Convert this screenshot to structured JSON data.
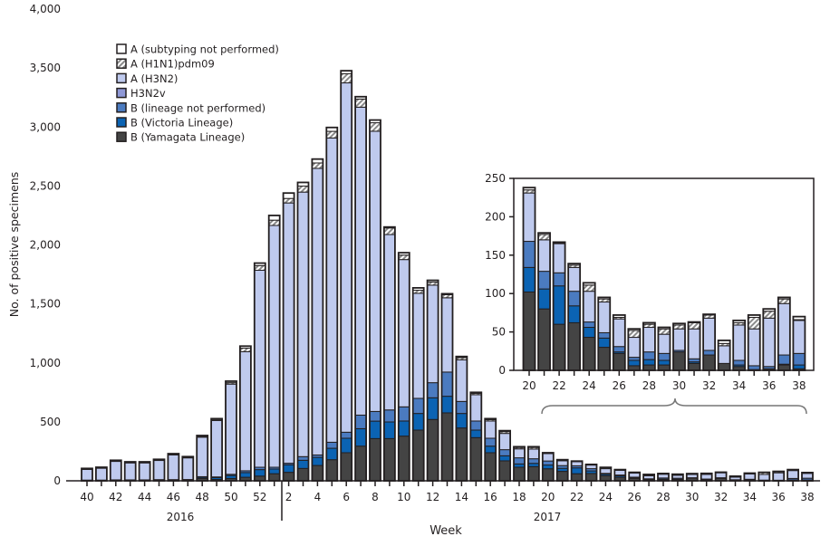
{
  "chart_data": {
    "type": "bar",
    "stacked": true,
    "ylabel": "No. of positive specimens",
    "xlabel": "Week",
    "ylim": [
      0,
      4000
    ],
    "y_ticks": [
      "0",
      "500",
      "1,000",
      "1,500",
      "2,000",
      "2,500",
      "3,000",
      "3,500",
      "4,000"
    ],
    "year_labels": [
      "2016",
      "2017"
    ],
    "weeks": [
      40,
      41,
      42,
      43,
      44,
      45,
      46,
      47,
      48,
      49,
      50,
      51,
      52,
      1,
      2,
      3,
      4,
      5,
      6,
      7,
      8,
      9,
      10,
      11,
      12,
      13,
      14,
      15,
      16,
      17,
      18,
      19,
      20,
      21,
      22,
      23,
      24,
      25,
      26,
      27,
      28,
      29,
      30,
      31,
      32,
      33,
      34,
      35,
      36,
      37,
      38
    ],
    "x_tick_labels": [
      "40",
      "42",
      "44",
      "46",
      "48",
      "50",
      "52",
      "2",
      "4",
      "6",
      "8",
      "10",
      "12",
      "14",
      "16",
      "18",
      "20",
      "22",
      "24",
      "26",
      "28",
      "30",
      "32",
      "34",
      "36",
      "38"
    ],
    "series": [
      {
        "name": "B (Yamagata Lineage)",
        "color": "#444444",
        "values": [
          3,
          3,
          4,
          4,
          4,
          5,
          5,
          6,
          20,
          12,
          20,
          30,
          40,
          60,
          72,
          105,
          130,
          179,
          238,
          294,
          358,
          358,
          379,
          430,
          520,
          576,
          448,
          366,
          238,
          169,
          115,
          120,
          102,
          80,
          60,
          62,
          43,
          30,
          22,
          6,
          7,
          7,
          24,
          9,
          20,
          9,
          5,
          1,
          2,
          7,
          2
        ]
      },
      {
        "name": "B (Victoria Lineage)",
        "color": "#0b63b3",
        "values": [
          2,
          2,
          2,
          2,
          2,
          3,
          3,
          3,
          10,
          15,
          25,
          40,
          55,
          40,
          64,
          69,
          69,
          97,
          123,
          148,
          148,
          141,
          128,
          141,
          184,
          141,
          123,
          64,
          56,
          43,
          28,
          28,
          32,
          26,
          50,
          22,
          13,
          12,
          2,
          7,
          7,
          6,
          0,
          2,
          0,
          0,
          2,
          0,
          0,
          1,
          5
        ]
      },
      {
        "name": "B (lineage not performed)",
        "color": "#4b7bc0",
        "values": [
          1,
          1,
          2,
          2,
          2,
          2,
          2,
          2,
          5,
          6,
          10,
          15,
          20,
          15,
          13,
          31,
          20,
          51,
          51,
          115,
          82,
          102,
          120,
          128,
          128,
          205,
          102,
          77,
          67,
          52,
          52,
          39,
          34,
          23,
          17,
          19,
          7,
          7,
          7,
          4,
          10,
          9,
          2,
          4,
          6,
          0,
          6,
          5,
          3,
          12,
          15
        ]
      },
      {
        "name": "H3N2v",
        "color": "#8f98d6",
        "values": [
          0,
          0,
          0,
          0,
          0,
          0,
          0,
          0,
          0,
          0,
          0,
          0,
          0,
          0,
          0,
          0,
          0,
          0,
          0,
          0,
          0,
          0,
          0,
          0,
          0,
          0,
          0,
          0,
          0,
          0,
          0,
          0,
          0,
          0,
          0,
          0,
          0,
          0,
          0,
          0,
          0,
          0,
          0,
          0,
          0,
          0,
          0,
          0,
          0,
          0,
          0
        ]
      },
      {
        "name": "A (H3N2)",
        "color": "#bfcaee",
        "values": [
          92,
          102,
          158,
          145,
          145,
          164,
          210,
          184,
          335,
          478,
          765,
          1010,
          1670,
          2050,
          2207,
          2243,
          2430,
          2580,
          2962,
          2611,
          2376,
          1487,
          1249,
          891,
          827,
          630,
          353,
          223,
          146,
          138,
          76,
          82,
          63,
          41,
          38,
          31,
          40,
          40,
          36,
          26,
          32,
          25,
          28,
          39,
          42,
          23,
          46,
          48,
          63,
          67,
          43
        ]
      },
      {
        "name": "A (H1N1)pdm09",
        "color": "hatch",
        "values": [
          2,
          2,
          2,
          2,
          2,
          2,
          3,
          3,
          5,
          6,
          12,
          30,
          40,
          45,
          38,
          51,
          46,
          56,
          77,
          69,
          72,
          56,
          38,
          26,
          26,
          26,
          18,
          12,
          12,
          15,
          12,
          14,
          4,
          7,
          1,
          3,
          8,
          4,
          2,
          9,
          4,
          7,
          5,
          8,
          4,
          3,
          3,
          15,
          9,
          6,
          1
        ]
      },
      {
        "name": "A (subtyping not performed)",
        "color": "#ffffff",
        "values": [
          5,
          5,
          6,
          6,
          6,
          6,
          7,
          7,
          9,
          10,
          13,
          17,
          21,
          40,
          46,
          31,
          33,
          33,
          26,
          20,
          23,
          8,
          20,
          20,
          15,
          8,
          10,
          8,
          8,
          8,
          6,
          6,
          3,
          2,
          1,
          2,
          3,
          2,
          3,
          2,
          2,
          2,
          2,
          1,
          1,
          4,
          3,
          3,
          3,
          2,
          4
        ]
      }
    ],
    "inset": {
      "ylim": [
        0,
        250
      ],
      "y_ticks": [
        "0",
        "50",
        "100",
        "150",
        "200",
        "250"
      ],
      "week_range": [
        20,
        38
      ],
      "x_tick_labels": [
        "20",
        "22",
        "24",
        "26",
        "28",
        "30",
        "32",
        "34",
        "36",
        "38"
      ]
    }
  }
}
